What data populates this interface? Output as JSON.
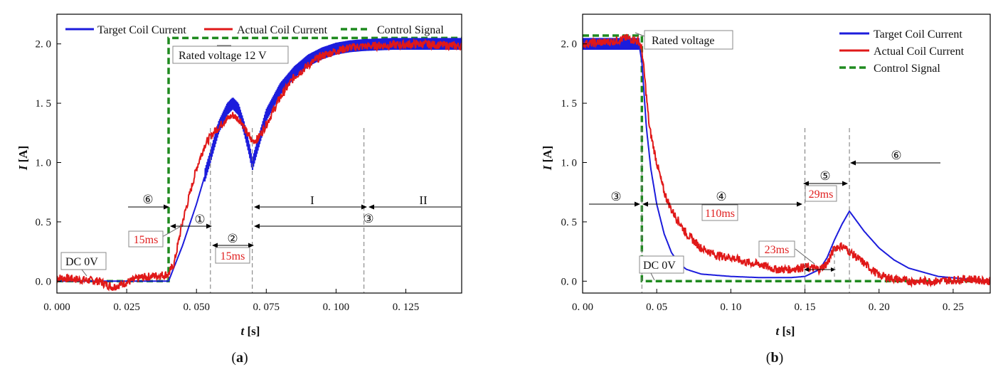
{
  "colors": {
    "target": "#1c1cdc",
    "actual": "#e01818",
    "control": "#1f8a1f",
    "frame": "#000000"
  },
  "chart_data": [
    {
      "id": "a",
      "type": "line",
      "caption_open": "(",
      "caption_letter": "a",
      "caption_close": ")",
      "xlabel_var": "t",
      "xlabel_unit": " [s]",
      "ylabel_var": "I",
      "ylabel_unit": " [A]",
      "xlim": [
        0,
        0.145
      ],
      "ylim": [
        -0.1,
        2.25
      ],
      "xticks": [
        0,
        0.025,
        0.05,
        0.075,
        0.1,
        0.125
      ],
      "xtick_labels": [
        "0. 000",
        "0. 025",
        "0. 050",
        "0. 075",
        "0. 100",
        "0. 125"
      ],
      "yticks": [
        0,
        0.5,
        1,
        1.5,
        2
      ],
      "ytick_labels": [
        "0. 0",
        "0. 5",
        "1. 0",
        "1. 5",
        "2. 0"
      ],
      "legend": [
        "Target Coil Current",
        "Actual Coil Current",
        "Control Signal"
      ],
      "legend_position": "top, horizontal",
      "series": [
        {
          "name": "Target Coil Current",
          "x": [
            0,
            0.04,
            0.045,
            0.05,
            0.055,
            0.058,
            0.061,
            0.063,
            0.065,
            0.067,
            0.069,
            0.07,
            0.072,
            0.075,
            0.08,
            0.085,
            0.09,
            0.095,
            0.1,
            0.105,
            0.11,
            0.12,
            0.13,
            0.145
          ],
          "y": [
            0,
            0,
            0.3,
            0.65,
            1.05,
            1.3,
            1.45,
            1.5,
            1.45,
            1.3,
            1.1,
            0.98,
            1.15,
            1.4,
            1.62,
            1.76,
            1.86,
            1.92,
            1.96,
            1.98,
            1.99,
            2.0,
            2.0,
            2.0
          ],
          "ripple_amplitude": 0.05,
          "ripple_start_x": 0.053
        },
        {
          "name": "Actual Coil Current",
          "x": [
            0,
            0.015,
            0.02,
            0.03,
            0.04,
            0.042,
            0.045,
            0.05,
            0.053,
            0.056,
            0.06,
            0.063,
            0.066,
            0.068,
            0.07,
            0.072,
            0.075,
            0.08,
            0.085,
            0.09,
            0.095,
            0.1,
            0.105,
            0.11,
            0.12,
            0.13,
            0.145
          ],
          "y": [
            0.03,
            0.0,
            -0.05,
            0.03,
            0.06,
            0.15,
            0.5,
            0.95,
            1.15,
            1.25,
            1.35,
            1.4,
            1.35,
            1.25,
            1.18,
            1.2,
            1.32,
            1.55,
            1.72,
            1.82,
            1.9,
            1.94,
            1.97,
            1.98,
            1.99,
            2.0,
            1.98
          ],
          "noise_amplitude": 0.035
        },
        {
          "name": "Control Signal",
          "x": [
            0,
            0.04,
            0.04,
            0.145
          ],
          "y": [
            0,
            0,
            2.05,
            2.05
          ],
          "dashed": true
        }
      ],
      "vlines_x": [
        0.055,
        0.07,
        0.11
      ],
      "annotations": {
        "dc": "DC 0V",
        "rated": "Rated voltage 12  V",
        "ms1": "15ms",
        "ms2": "15ms",
        "c1": "①",
        "c2": "②",
        "c3": "③",
        "c6": "⑥",
        "r1": "I",
        "r2": "II"
      }
    },
    {
      "id": "b",
      "type": "line",
      "caption_open": "(",
      "caption_letter": "b",
      "caption_close": ")",
      "xlabel_var": "t",
      "xlabel_unit": " [s]",
      "ylabel_var": "I",
      "ylabel_unit": " [A]",
      "xlim": [
        0,
        0.275
      ],
      "ylim": [
        -0.1,
        2.25
      ],
      "xticks": [
        0,
        0.05,
        0.1,
        0.15,
        0.2,
        0.25
      ],
      "xtick_labels": [
        "0. 00",
        "0. 05",
        "0. 10",
        "0. 15",
        "0. 20",
        "0. 25"
      ],
      "yticks": [
        0,
        0.5,
        1,
        1.5,
        2
      ],
      "ytick_labels": [
        "0. 0",
        "0. 5",
        "1. 0",
        "1. 5",
        "2. 0"
      ],
      "legend": [
        "Target Coil Current",
        "Actual Coil Current",
        "Control Signal"
      ],
      "legend_position": "top-right",
      "series": [
        {
          "name": "Target Coil Current",
          "x": [
            0,
            0.038,
            0.04,
            0.043,
            0.046,
            0.05,
            0.055,
            0.06,
            0.065,
            0.07,
            0.08,
            0.1,
            0.12,
            0.14,
            0.15,
            0.16,
            0.165,
            0.17,
            0.175,
            0.18,
            0.19,
            0.2,
            0.21,
            0.22,
            0.24,
            0.275
          ],
          "y": [
            2.0,
            2.0,
            1.85,
            1.3,
            0.95,
            0.65,
            0.4,
            0.24,
            0.15,
            0.1,
            0.06,
            0.04,
            0.03,
            0.03,
            0.04,
            0.1,
            0.2,
            0.35,
            0.48,
            0.59,
            0.42,
            0.28,
            0.18,
            0.11,
            0.04,
            0.0
          ],
          "ripple_amplitude": 0.05,
          "ripple_end_x": 0.038
        },
        {
          "name": "Actual Coil Current",
          "x": [
            0,
            0.02,
            0.03,
            0.038,
            0.04,
            0.042,
            0.045,
            0.05,
            0.055,
            0.06,
            0.07,
            0.08,
            0.09,
            0.1,
            0.11,
            0.12,
            0.13,
            0.14,
            0.15,
            0.16,
            0.165,
            0.17,
            0.175,
            0.18,
            0.19,
            0.2,
            0.21,
            0.22,
            0.24,
            0.26,
            0.275
          ],
          "y": [
            2.0,
            2.02,
            2.05,
            2.02,
            1.95,
            1.7,
            1.3,
            1.0,
            0.75,
            0.6,
            0.4,
            0.28,
            0.22,
            0.2,
            0.16,
            0.14,
            0.1,
            0.1,
            0.12,
            0.1,
            0.15,
            0.28,
            0.3,
            0.25,
            0.15,
            0.05,
            0.02,
            0.0,
            0.0,
            0.02,
            0.0
          ],
          "noise_amplitude": 0.035
        },
        {
          "name": "Control Signal",
          "x": [
            0,
            0.04,
            0.04,
            0.275
          ],
          "y": [
            2.07,
            2.07,
            0,
            0
          ],
          "dashed": true
        }
      ],
      "vlines_x": [
        0.04,
        0.15,
        0.18
      ],
      "annotations": {
        "dc": "DC 0V",
        "rated": "Rated voltage",
        "ms110": "110ms",
        "ms29": "29ms",
        "ms23": "23ms",
        "c3": "③",
        "c4": "④",
        "c5": "⑤",
        "c6": "⑥"
      }
    }
  ]
}
